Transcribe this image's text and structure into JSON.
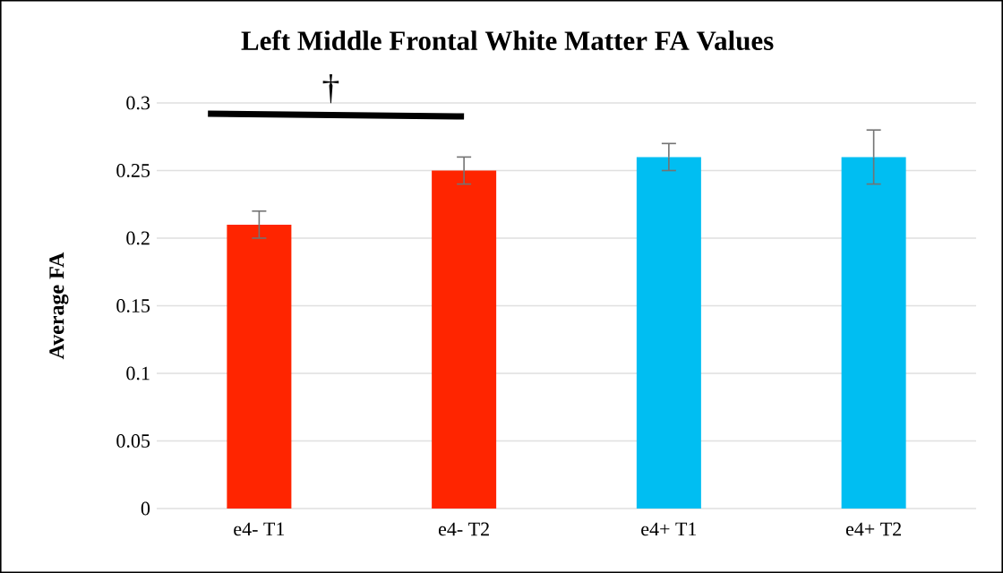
{
  "chart_data": {
    "type": "bar",
    "title": "Left Middle Frontal White Matter FA Values",
    "ylabel": "Average FA",
    "categories": [
      "e4- T1",
      "e4- T2",
      "e4+ T1",
      "e4+ T2"
    ],
    "values": [
      0.21,
      0.25,
      0.26,
      0.26
    ],
    "errors": [
      0.01,
      0.01,
      0.01,
      0.02
    ],
    "colors": [
      "#ff2500",
      "#ff2500",
      "#00bef2",
      "#00bef2"
    ],
    "ylim": [
      0,
      0.3
    ],
    "yticks": [
      0,
      0.05,
      0.1,
      0.15,
      0.2,
      0.25,
      0.3
    ],
    "grid": "y",
    "annotations": [
      "†"
    ]
  }
}
